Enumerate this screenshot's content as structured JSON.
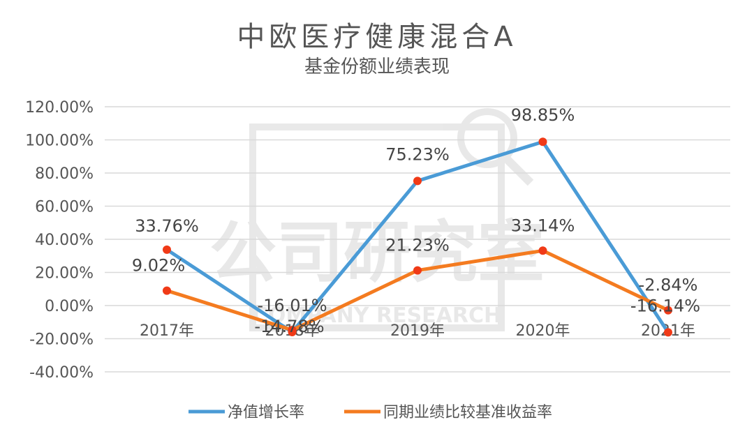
{
  "chart_data": {
    "type": "line",
    "title": "中欧医疗健康混合A",
    "subtitle": "基金份额业绩表现",
    "categories": [
      "2017年",
      "2018年",
      "2019年",
      "2020年",
      "2021年"
    ],
    "series": [
      {
        "name": "净值增长率",
        "color": "#4A9BD6",
        "values": [
          33.76,
          -16.01,
          75.23,
          98.85,
          -16.14
        ],
        "labels": [
          "33.76%",
          "-16.01%",
          "75.23%",
          "98.85%",
          "-16.14%"
        ]
      },
      {
        "name": "同期业绩比较基准收益率",
        "color": "#F47B20",
        "values": [
          9.02,
          -14.78,
          21.23,
          33.14,
          -2.84
        ],
        "labels": [
          "9.02%",
          "-14.78%",
          "21.23%",
          "33.14%",
          "-2.84%"
        ]
      }
    ],
    "y_ticks": [
      "120.00%",
      "100.00%",
      "80.00%",
      "60.00%",
      "40.00%",
      "20.00%",
      "0.00%",
      "-20.00%",
      "-40.00%"
    ],
    "ylim": [
      -40,
      120
    ],
    "grid": true,
    "marker_color": "#F03A17",
    "legend_position": "bottom"
  },
  "watermark": {
    "text_main": "公司研究室",
    "text_en": "COMPANY RESEARCH"
  }
}
